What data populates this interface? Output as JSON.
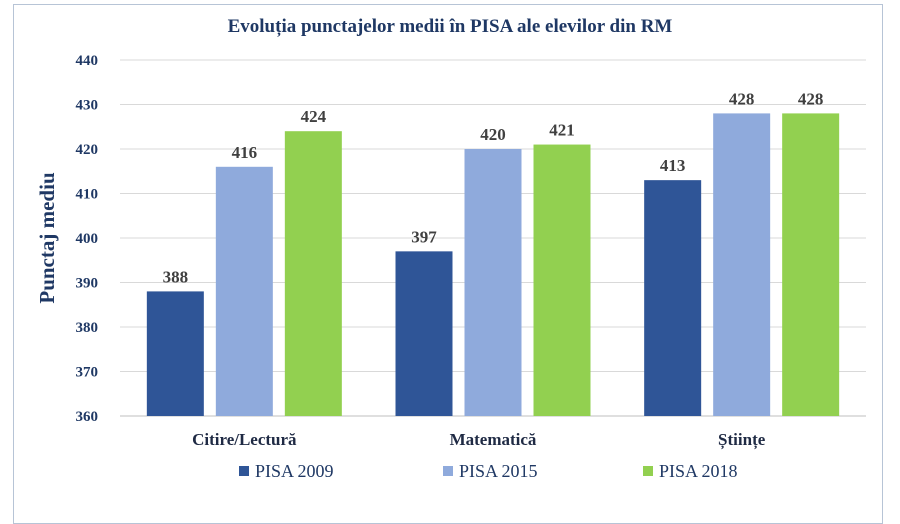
{
  "chart_data": {
    "type": "bar",
    "title": "Evoluția punctajelor medii în PISA ale elevilor din RM",
    "xlabel": "",
    "ylabel": "Punctaj mediu",
    "ylim": [
      360,
      440
    ],
    "yticks": [
      360,
      370,
      380,
      390,
      400,
      410,
      420,
      430,
      440
    ],
    "grid": true,
    "legend_position": "bottom",
    "categories": [
      "Citire/Lectură",
      "Matematică",
      "Științe"
    ],
    "series": [
      {
        "name": "PISA 2009",
        "color": "#2f5597",
        "values": [
          388,
          397,
          413
        ]
      },
      {
        "name": "PISA 2015",
        "color": "#8faadc",
        "values": [
          416,
          420,
          428
        ]
      },
      {
        "name": "PISA 2018",
        "color": "#92d050",
        "values": [
          424,
          421,
          428
        ]
      }
    ]
  }
}
